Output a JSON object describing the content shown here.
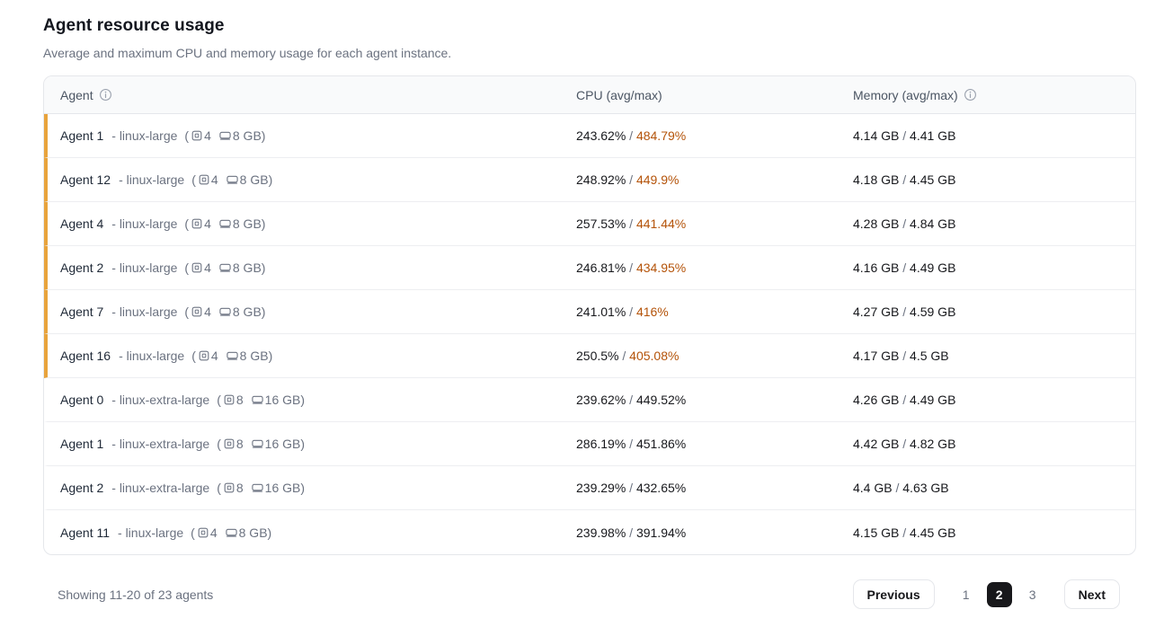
{
  "page": {
    "title": "Agent resource usage",
    "subtitle": "Average and maximum CPU and memory usage for each agent instance."
  },
  "table": {
    "columns": {
      "agent": "Agent",
      "cpu": "CPU (avg/max)",
      "memory": "Memory (avg/max)"
    },
    "instance_prefix": "- ",
    "paren_open": "(",
    "paren_close": ")",
    "separator": " / ",
    "rows": [
      {
        "name": "Agent 1",
        "instance": "linux-large",
        "cpus": "4",
        "ram": "8 GB",
        "flagged": true,
        "cpu_avg": "243.62%",
        "cpu_max": "484.79%",
        "mem_avg": "4.14 GB",
        "mem_max": "4.41 GB"
      },
      {
        "name": "Agent 12",
        "instance": "linux-large",
        "cpus": "4",
        "ram": "8 GB",
        "flagged": true,
        "cpu_avg": "248.92%",
        "cpu_max": "449.9%",
        "mem_avg": "4.18 GB",
        "mem_max": "4.45 GB"
      },
      {
        "name": "Agent 4",
        "instance": "linux-large",
        "cpus": "4",
        "ram": "8 GB",
        "flagged": true,
        "cpu_avg": "257.53%",
        "cpu_max": "441.44%",
        "mem_avg": "4.28 GB",
        "mem_max": "4.84 GB"
      },
      {
        "name": "Agent 2",
        "instance": "linux-large",
        "cpus": "4",
        "ram": "8 GB",
        "flagged": true,
        "cpu_avg": "246.81%",
        "cpu_max": "434.95%",
        "mem_avg": "4.16 GB",
        "mem_max": "4.49 GB"
      },
      {
        "name": "Agent 7",
        "instance": "linux-large",
        "cpus": "4",
        "ram": "8 GB",
        "flagged": true,
        "cpu_avg": "241.01%",
        "cpu_max": "416%",
        "mem_avg": "4.27 GB",
        "mem_max": "4.59 GB"
      },
      {
        "name": "Agent 16",
        "instance": "linux-large",
        "cpus": "4",
        "ram": "8 GB",
        "flagged": true,
        "cpu_avg": "250.5%",
        "cpu_max": "405.08%",
        "mem_avg": "4.17 GB",
        "mem_max": "4.5 GB"
      },
      {
        "name": "Agent 0",
        "instance": "linux-extra-large",
        "cpus": "8",
        "ram": "16 GB",
        "flagged": false,
        "cpu_avg": "239.62%",
        "cpu_max": "449.52%",
        "mem_avg": "4.26 GB",
        "mem_max": "4.49 GB"
      },
      {
        "name": "Agent 1",
        "instance": "linux-extra-large",
        "cpus": "8",
        "ram": "16 GB",
        "flagged": false,
        "cpu_avg": "286.19%",
        "cpu_max": "451.86%",
        "mem_avg": "4.42 GB",
        "mem_max": "4.82 GB"
      },
      {
        "name": "Agent 2",
        "instance": "linux-extra-large",
        "cpus": "8",
        "ram": "16 GB",
        "flagged": false,
        "cpu_avg": "239.29%",
        "cpu_max": "432.65%",
        "mem_avg": "4.4 GB",
        "mem_max": "4.63 GB"
      },
      {
        "name": "Agent 11",
        "instance": "linux-large",
        "cpus": "4",
        "ram": "8 GB",
        "flagged": false,
        "cpu_avg": "239.98%",
        "cpu_max": "391.94%",
        "mem_avg": "4.15 GB",
        "mem_max": "4.45 GB"
      }
    ]
  },
  "footer": {
    "summary": "Showing 11-20 of 23 agents",
    "pagination": {
      "previous_label": "Previous",
      "next_label": "Next",
      "pages": [
        "1",
        "2",
        "3"
      ],
      "active_page": "2"
    }
  },
  "colors": {
    "warning_strip": "#e8a33c",
    "warning_text": "#b45309",
    "active_page_bg": "#18181b"
  }
}
